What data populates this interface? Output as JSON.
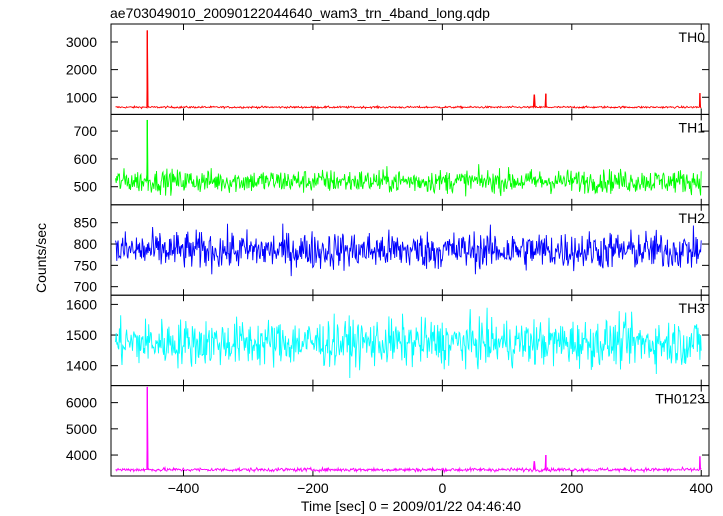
{
  "chart_data": {
    "type": "line",
    "title": "ae703049010_20090122044640_wam3_trn_4band_long.qdp",
    "xlabel": "Time [sec] 0 = 2009/01/22 04:46:40",
    "ylabel": "Counts/sec",
    "xlim": [
      -512,
      412
    ],
    "x_ticks": [
      -400,
      -200,
      0,
      200,
      400
    ],
    "x_tick_labels": [
      "−400",
      "−200",
      "0",
      "200",
      "400"
    ],
    "panels": [
      {
        "name": "TH0",
        "color": "#ff0000",
        "ylim": [
          380,
          3650
        ],
        "y_ticks": [
          1000,
          2000,
          3000
        ],
        "baseline": 640,
        "noise": 25,
        "x_start": -505,
        "x_end": 400,
        "spikes": [
          [
            -456,
            3420
          ],
          [
            142,
            1080
          ],
          [
            160,
            1130
          ],
          [
            398,
            1150
          ]
        ]
      },
      {
        "name": "TH1",
        "color": "#00ff00",
        "ylim": [
          435,
          760
        ],
        "y_ticks": [
          500,
          600,
          700
        ],
        "baseline": 520,
        "noise": 30,
        "x_start": -505,
        "x_end": 400,
        "spikes": [
          [
            -456,
            740
          ]
        ]
      },
      {
        "name": "TH2",
        "color": "#0000ff",
        "ylim": [
          680,
          892
        ],
        "y_ticks": [
          700,
          750,
          800,
          850
        ],
        "baseline": 785,
        "noise": 32,
        "x_start": -505,
        "x_end": 400,
        "spikes": []
      },
      {
        "name": "TH3",
        "color": "#00ffff",
        "ylim": [
          1335,
          1630
        ],
        "y_ticks": [
          1400,
          1500,
          1600
        ],
        "baseline": 1475,
        "noise": 55,
        "x_start": -505,
        "x_end": 400,
        "spikes": []
      },
      {
        "name": "TH0123",
        "color": "#ff00ff",
        "ylim": [
          3200,
          6650
        ],
        "y_ticks": [
          4000,
          5000,
          6000
        ],
        "baseline": 3440,
        "noise": 50,
        "x_start": -505,
        "x_end": 400,
        "spikes": [
          [
            -456,
            6600
          ],
          [
            142,
            3750
          ],
          [
            160,
            4000
          ],
          [
            398,
            3950
          ]
        ]
      }
    ]
  }
}
